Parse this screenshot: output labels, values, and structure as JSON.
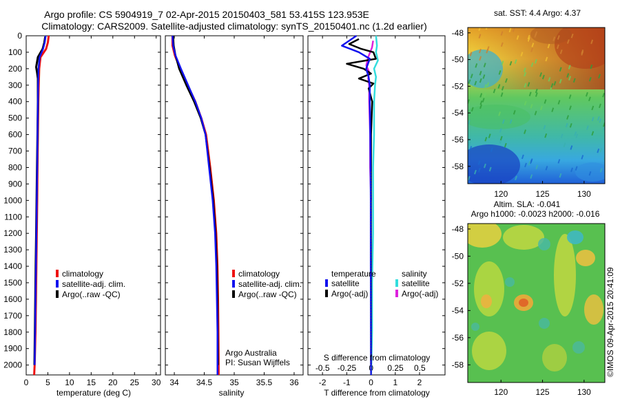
{
  "header": {
    "line1": "Argo profile: CS 5904919_7 02-Apr-2015 20150403_581 53.415S 123.953E",
    "line2": "Climatology: CARS2009. Satellite-adjusted climatology: synTS_20150401.nc (1.2d earlier)"
  },
  "colors": {
    "climatology": "#ee1111",
    "satellite": "#1111ee",
    "argo": "#000000",
    "satellite_s": "#33dddd",
    "argo_s": "#dd22dd"
  },
  "chart_data": [
    {
      "id": "temperature",
      "type": "line",
      "xlabel": "temperature (deg C)",
      "ylabel": "",
      "xlim": [
        0,
        31
      ],
      "ylim": [
        2060,
        0
      ],
      "xticks": [
        "0",
        "5",
        "10",
        "15",
        "20",
        "25",
        "30"
      ],
      "xtick_values": [
        0,
        5,
        10,
        15,
        20,
        25,
        30
      ],
      "yticks": [
        "0",
        "100",
        "200",
        "300",
        "400",
        "500",
        "600",
        "700",
        "800",
        "900",
        "1000",
        "1100",
        "1200",
        "1300",
        "1400",
        "1500",
        "1600",
        "1700",
        "1800",
        "1900",
        "2000"
      ],
      "ytick_values": [
        0,
        100,
        200,
        300,
        400,
        500,
        600,
        700,
        800,
        900,
        1000,
        1100,
        1200,
        1300,
        1400,
        1500,
        1600,
        1700,
        1800,
        1900,
        2000
      ],
      "legend": [
        "climatology",
        "satellite-adj. clim.",
        "Argo(..raw -QC)"
      ],
      "series": [
        {
          "name": "climatology",
          "color": "#ee1111",
          "width": 3,
          "x": [
            5.2,
            5.0,
            4.6,
            3.3,
            3.0,
            2.9,
            2.8,
            2.7,
            2.6,
            2.55,
            2.45,
            2.35,
            2.25,
            2.15,
            2.05,
            1.95,
            1.85
          ],
          "y": [
            0,
            40,
            80,
            130,
            200,
            300,
            400,
            600,
            800,
            1000,
            1200,
            1400,
            1600,
            1800,
            1900,
            2000,
            2060
          ]
        },
        {
          "name": "Argo(..raw -QC)",
          "color": "#000000",
          "width": 3,
          "x": [
            4.4,
            4.2,
            3.8,
            2.7,
            2.3,
            2.5,
            2.7,
            2.7,
            2.6,
            2.5,
            2.4,
            2.3,
            2.2,
            2.1,
            2.0,
            1.9
          ],
          "y": [
            5,
            40,
            80,
            130,
            190,
            220,
            260,
            400,
            600,
            800,
            1000,
            1200,
            1400,
            1600,
            1800,
            2000
          ]
        },
        {
          "name": "satellite-adj. clim.",
          "color": "#1111ee",
          "width": 2.5,
          "x": [
            4.5,
            4.3,
            3.9,
            3.1,
            2.85,
            2.75,
            2.7,
            2.6,
            2.55,
            2.45,
            2.35,
            2.25,
            2.15,
            2.05,
            1.95
          ],
          "y": [
            0,
            40,
            80,
            130,
            200,
            300,
            400,
            600,
            800,
            1000,
            1200,
            1400,
            1600,
            1800,
            2000
          ]
        }
      ]
    },
    {
      "id": "salinity",
      "type": "line",
      "xlabel": "salinity",
      "xlim": [
        33.85,
        36.15
      ],
      "ylim": [
        2060,
        0
      ],
      "xticks": [
        "34",
        "34.5",
        "35",
        "35.5",
        "36"
      ],
      "xtick_values": [
        34,
        34.5,
        35,
        35.5,
        36
      ],
      "legend": [
        "climatology",
        "satellite-adj. clim.",
        "Argo(..raw -QC)"
      ],
      "annotation": [
        "Argo Australia",
        "PI: Susan Wijffels"
      ],
      "series": [
        {
          "name": "climatology",
          "color": "#ee1111",
          "width": 3,
          "x": [
            33.97,
            33.97,
            34.01,
            34.1,
            34.22,
            34.35,
            34.45,
            34.53,
            34.6,
            34.66,
            34.7,
            34.72,
            34.73,
            34.735,
            34.74
          ],
          "y": [
            0,
            60,
            120,
            200,
            300,
            400,
            500,
            600,
            800,
            1000,
            1200,
            1400,
            1600,
            1800,
            2060
          ]
        },
        {
          "name": "Argo(..raw -QC)",
          "color": "#000000",
          "width": 2.5,
          "x": [
            33.98,
            33.99,
            34.02,
            34.08,
            34.2,
            34.33,
            34.44,
            34.52,
            34.59,
            34.65,
            34.69,
            34.71,
            34.72,
            34.73
          ],
          "y": [
            0,
            60,
            120,
            200,
            300,
            400,
            500,
            600,
            800,
            1000,
            1200,
            1400,
            1600,
            2000
          ]
        },
        {
          "name": "satellite-adj. clim.",
          "color": "#1111ee",
          "width": 2.5,
          "x": [
            33.97,
            33.98,
            34.02,
            34.11,
            34.23,
            34.35,
            34.45,
            34.52,
            34.58,
            34.64,
            34.68,
            34.7,
            34.71,
            34.72,
            34.72
          ],
          "y": [
            0,
            60,
            120,
            200,
            300,
            400,
            500,
            600,
            800,
            1000,
            1200,
            1400,
            1600,
            1800,
            2060
          ]
        }
      ]
    },
    {
      "id": "difference",
      "type": "line",
      "xlabel": "T difference from climatology",
      "top_label": "S difference from climatology",
      "xlim": [
        -2.6,
        3.05
      ],
      "ylim": [
        2060,
        0
      ],
      "xticks": [
        "-2",
        "-1",
        "0",
        "1",
        "2"
      ],
      "xtick_values": [
        -2,
        -1,
        0,
        1,
        2
      ],
      "sticks": [
        "-0.5",
        "-0.25",
        "0",
        "0.25",
        "0.5"
      ],
      "stick_values": [
        -0.5,
        -0.25,
        0,
        0.25,
        0.5
      ],
      "legend_t_title": "temperature",
      "legend_s_title": "salinity",
      "legend_t": [
        "satellite",
        "Argo(-adj)"
      ],
      "legend_s": [
        "satellite",
        "Argo(-adj)"
      ],
      "series": [
        {
          "name": "S satellite",
          "color": "#33dddd",
          "width": 2.5,
          "scale": "S",
          "x": [
            0.05,
            0.06,
            0.05,
            0.07,
            0.03,
            0.05,
            0.04,
            0.03,
            0.03,
            0.02,
            0.02,
            0.02,
            0.01,
            0.01,
            0.0
          ],
          "y": [
            0,
            60,
            100,
            150,
            200,
            250,
            300,
            400,
            600,
            800,
            1000,
            1200,
            1500,
            1800,
            2060
          ]
        },
        {
          "name": "S Argo(-adj)",
          "color": "#dd22dd",
          "width": 2.5,
          "scale": "S",
          "x": [
            0.02,
            0.01,
            -0.03,
            -0.05,
            -0.02,
            -0.03,
            -0.02,
            -0.02,
            -0.01,
            -0.01,
            0.0
          ],
          "y": [
            30,
            70,
            130,
            180,
            220,
            260,
            300,
            400,
            600,
            800,
            1000
          ]
        },
        {
          "name": "T Argo(-adj)",
          "color": "#000000",
          "width": 2.5,
          "scale": "T",
          "x": [
            -0.5,
            -0.9,
            -0.4,
            0.1,
            0.2,
            -1.0,
            -0.3,
            0.0,
            -0.5,
            0.1,
            -0.1,
            0.05,
            0.0,
            0.0,
            0.0,
            0.0
          ],
          "y": [
            20,
            50,
            80,
            100,
            140,
            170,
            200,
            230,
            260,
            290,
            320,
            400,
            600,
            1000,
            1600,
            2000
          ]
        },
        {
          "name": "T satellite",
          "color": "#1111ee",
          "width": 2.5,
          "scale": "T",
          "x": [
            -0.6,
            -1.2,
            -0.5,
            -0.05,
            -0.2,
            -0.1,
            -0.05,
            -0.05,
            -0.03,
            -0.02,
            -0.01,
            -0.01,
            0.0
          ],
          "y": [
            0,
            60,
            100,
            140,
            200,
            250,
            300,
            400,
            600,
            800,
            1000,
            1400,
            2060
          ]
        }
      ]
    },
    {
      "id": "sst_map",
      "type": "heatmap",
      "title": "sat. SST: 4.4  Argo: 4.37",
      "xlim": [
        116,
        132.5
      ],
      "ylim": [
        -59.3,
        -47.6
      ],
      "xticks": [
        "120",
        "125",
        "130"
      ],
      "xtick_values": [
        120,
        125,
        130
      ],
      "yticks": [
        "-48",
        "-50",
        "-52",
        "-54",
        "-56",
        "-58"
      ],
      "ytick_values": [
        -48,
        -50,
        -52,
        -54,
        -56,
        -58
      ]
    },
    {
      "id": "sla_map",
      "type": "heatmap",
      "title_line1": "Altim. SLA: -0.041",
      "title_line2": "Argo h1000: -0.0023 h2000: -0.016",
      "xlim": [
        116,
        132.5
      ],
      "ylim": [
        -59.3,
        -47.6
      ],
      "xticks": [
        "120",
        "125",
        "130"
      ],
      "xtick_values": [
        120,
        125,
        130
      ],
      "yticks": [
        "-48",
        "-50",
        "-52",
        "-54",
        "-56",
        "-58"
      ],
      "ytick_values": [
        -48,
        -50,
        -52,
        -54,
        -56,
        -58
      ]
    }
  ],
  "footer": {
    "credit": "©IMOS 09-Apr-2015 20:41:09"
  }
}
